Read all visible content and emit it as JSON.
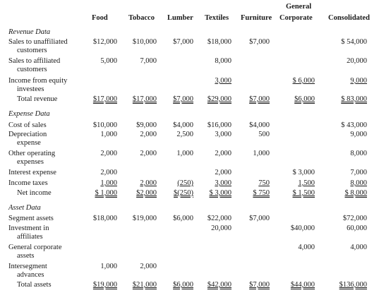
{
  "header": {
    "top": "General",
    "columns": [
      "Food",
      "Tobacco",
      "Lumber",
      "Textiles",
      "Furniture",
      "Corporate",
      "Consolidated"
    ]
  },
  "sections": {
    "revenue": "Revenue Data",
    "expense": "Expense Data",
    "asset": "Asset Data"
  },
  "rows": [
    {
      "label": [
        "Sales to unaffiliated",
        "customers"
      ],
      "values": [
        "$12,000",
        "$10,000",
        "$7,000",
        "$18,000",
        "$7,000",
        "",
        "$ 54,000"
      ]
    },
    {
      "label": [
        "Sales to affiliated",
        "customers"
      ],
      "values": [
        "5,000",
        "7,000",
        "",
        "8,000",
        "",
        "",
        "20,000"
      ]
    },
    {
      "label": [
        "Income from equity",
        "investees"
      ],
      "values": [
        "",
        "",
        "",
        "3,000",
        "",
        "$ 6,000",
        "9,000"
      ]
    },
    {
      "label": [
        "Total revenue"
      ],
      "values": [
        "$17,000",
        "$17,000",
        "$7,000",
        "$29,000",
        "$7,000",
        "$6,000",
        "$ 83,000"
      ]
    },
    {
      "label": [
        "Cost of sales"
      ],
      "values": [
        "$10,000",
        "$9,000",
        "$4,000",
        "$16,000",
        "$4,000",
        "",
        "$ 43,000"
      ]
    },
    {
      "label": [
        "Depreciation",
        "expense"
      ],
      "values": [
        "1,000",
        "2,000",
        "2,500",
        "3,000",
        "500",
        "",
        "9,000"
      ]
    },
    {
      "label": [
        "Other operating",
        "expenses"
      ],
      "values": [
        "2,000",
        "2,000",
        "1,000",
        "2,000",
        "1,000",
        "",
        "8,000"
      ]
    },
    {
      "label": [
        "Interest expense"
      ],
      "values": [
        "2,000",
        "",
        "",
        "2,000",
        "",
        "$ 3,000",
        "7,000"
      ]
    },
    {
      "label": [
        "Income taxes"
      ],
      "values": [
        "1,000",
        "2,000",
        "(250)",
        "3,000",
        "750",
        "1,500",
        "8,000"
      ]
    },
    {
      "label": [
        "Net income"
      ],
      "values": [
        "$ 1,000",
        "$2,000",
        "$(250)",
        "$ 3,000",
        "$ 750",
        "$ 1,500",
        "$ 8,000"
      ]
    },
    {
      "label": [
        "Segment assets"
      ],
      "values": [
        "$18,000",
        "$19,000",
        "$6,000",
        "$22,000",
        "$7,000",
        "",
        "$72,000"
      ]
    },
    {
      "label": [
        "Investment in",
        "affiliates"
      ],
      "values": [
        "",
        "",
        "",
        "20,000",
        "",
        "$40,000",
        "60,000"
      ]
    },
    {
      "label": [
        "General corporate",
        "assets"
      ],
      "values": [
        "",
        "",
        "",
        "",
        "",
        "4,000",
        "4,000"
      ]
    },
    {
      "label": [
        "Intersegment",
        "advances"
      ],
      "values": [
        "1,000",
        "2,000",
        "",
        "",
        "",
        "",
        ""
      ]
    },
    {
      "label": [
        "Total assets"
      ],
      "values": [
        "$19,000",
        "$21,000",
        "$6,000",
        "$42,000",
        "$7,000",
        "$44,000",
        "$136,000"
      ]
    }
  ]
}
